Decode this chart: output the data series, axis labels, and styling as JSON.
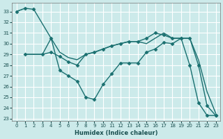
{
  "bg_color": "#cceaea",
  "grid_color": "#ffffff",
  "line_color": "#1a7070",
  "xlabel": "Humidex (Indice chaleur)",
  "xlim": [
    -0.5,
    23.5
  ],
  "ylim": [
    22.8,
    33.8
  ],
  "yticks": [
    23,
    24,
    25,
    26,
    27,
    28,
    29,
    30,
    31,
    32,
    33
  ],
  "xticks": [
    0,
    1,
    2,
    3,
    4,
    5,
    6,
    7,
    8,
    9,
    10,
    11,
    12,
    13,
    14,
    15,
    16,
    17,
    18,
    19,
    20,
    21,
    22,
    23
  ],
  "series": [
    {
      "x": [
        0,
        1,
        2,
        4,
        5,
        6,
        7,
        8,
        9,
        10,
        11,
        12,
        13,
        14,
        15,
        16,
        17,
        18,
        19,
        20,
        21,
        22,
        23
      ],
      "y": [
        33,
        33.3,
        33.2,
        30.5,
        27.5,
        27.0,
        26.5,
        25.0,
        24.8,
        26.2,
        27.2,
        28.2,
        28.2,
        28.2,
        29.2,
        29.5,
        30.1,
        30.0,
        30.5,
        30.5,
        28.0,
        24.2,
        23.3
      ],
      "marker": "D",
      "lw": 1.0,
      "ls": "solid"
    },
    {
      "x": [
        1,
        3,
        4,
        5,
        6,
        7,
        8,
        9,
        10,
        11,
        12,
        13,
        14,
        15,
        16,
        17,
        18,
        19,
        20,
        21,
        22,
        23
      ],
      "y": [
        29,
        29,
        30.5,
        29.2,
        28.7,
        28.5,
        29.0,
        29.2,
        29.5,
        29.8,
        30.0,
        30.2,
        30.2,
        30.0,
        30.5,
        31.0,
        30.5,
        30.5,
        30.5,
        28.5,
        25.5,
        23.5
      ],
      "marker": null,
      "lw": 1.0,
      "ls": "solid"
    },
    {
      "x": [
        1,
        3,
        4,
        5,
        6,
        7,
        8,
        9,
        10,
        11,
        12,
        13,
        14,
        15,
        16,
        17,
        18,
        19,
        20,
        21,
        22,
        23
      ],
      "y": [
        29,
        29,
        29.2,
        28.8,
        28.3,
        28.0,
        29.0,
        29.2,
        29.5,
        29.8,
        30.0,
        30.2,
        30.2,
        30.5,
        31.0,
        30.8,
        30.5,
        30.5,
        28.0,
        24.5,
        23.3,
        23.3
      ],
      "marker": "D",
      "lw": 1.0,
      "ls": "solid"
    },
    {
      "x": [
        0,
        1
      ],
      "y": [
        33,
        33.3
      ],
      "marker": null,
      "lw": 1.0,
      "ls": "dotted"
    }
  ]
}
